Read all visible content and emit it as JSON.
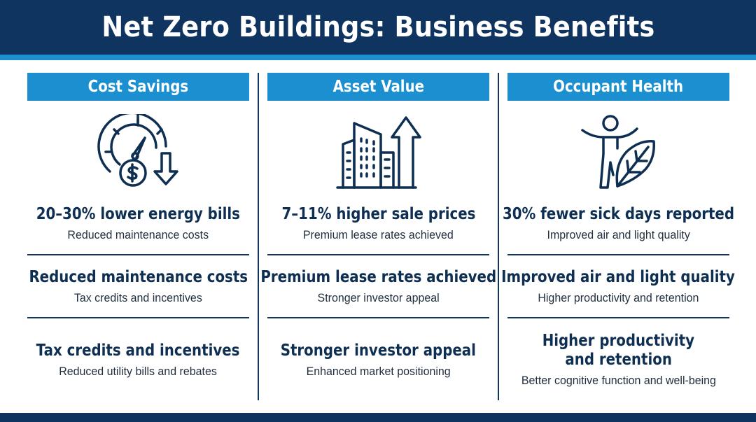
{
  "title": "Net Zero Buildings: Business Benefits",
  "columns": [
    {
      "header": "Cost Savings",
      "icon": "gauge-dollar-down-icon",
      "benefits": [
        {
          "head": "20–30% lower energy bills",
          "sub": "Reduced maintenance costs"
        },
        {
          "head": "Reduced maintenance costs",
          "sub": "Tax credits and incentives"
        },
        {
          "head": "Tax credits and incentives",
          "sub": "Reduced utility bills and rebates"
        }
      ]
    },
    {
      "header": "Asset Value",
      "icon": "building-arrow-up-icon",
      "benefits": [
        {
          "head": "7–11% higher sale prices",
          "sub": "Premium lease rates achieved"
        },
        {
          "head": "Premium lease rates achieved",
          "sub": "Stronger investor appeal"
        },
        {
          "head": "Stronger investor appeal",
          "sub": "Enhanced market positioning"
        }
      ]
    },
    {
      "header": "Occupant Health",
      "icon": "person-leaf-icon",
      "benefits": [
        {
          "head": "30% fewer sick days reported",
          "sub": "Improved air and light quality"
        },
        {
          "head": "Improved air and light quality",
          "sub": "Higher productivity and retention"
        },
        {
          "head_line1": "Higher productivity",
          "head_line2": "and retention",
          "sub": "Better cognitive function and well-being"
        }
      ]
    }
  ],
  "colors": {
    "navy": "#0f3460",
    "accent": "#1b8fd0",
    "text": "#0e2f52"
  }
}
